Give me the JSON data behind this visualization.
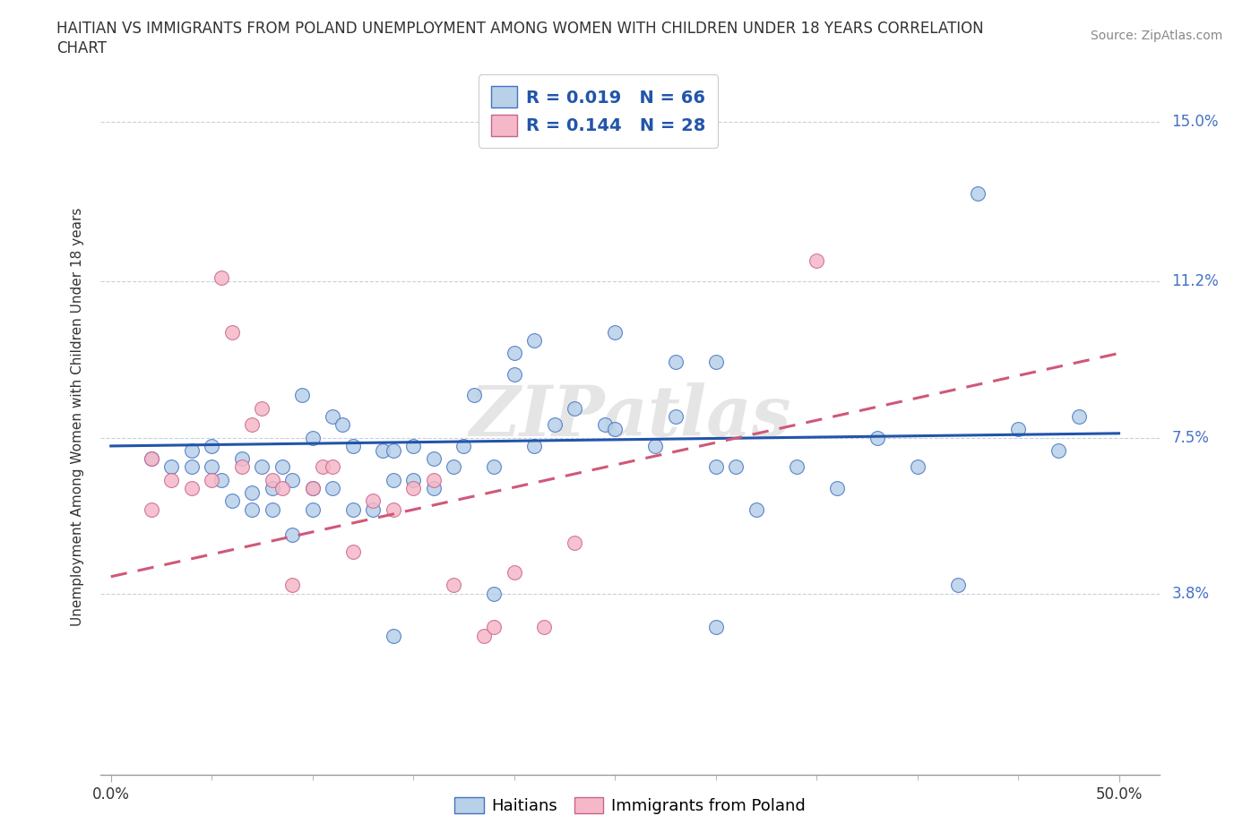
{
  "title_line1": "HAITIAN VS IMMIGRANTS FROM POLAND UNEMPLOYMENT AMONG WOMEN WITH CHILDREN UNDER 18 YEARS CORRELATION",
  "title_line2": "CHART",
  "source_text": "Source: ZipAtlas.com",
  "ylabel": "Unemployment Among Women with Children Under 18 years",
  "ytick_labels": [
    "3.8%",
    "7.5%",
    "11.2%",
    "15.0%"
  ],
  "ytick_values": [
    0.038,
    0.075,
    0.112,
    0.15
  ],
  "xtick_labels": [
    "0.0%",
    "50.0%"
  ],
  "xtick_values": [
    0.0,
    0.5
  ],
  "xlim": [
    -0.005,
    0.52
  ],
  "ylim": [
    -0.005,
    0.165
  ],
  "haitian_fill": "#b8d0e8",
  "haitian_edge": "#4472c4",
  "poland_fill": "#f5b8c8",
  "poland_edge": "#c8648c",
  "haitian_line_color": "#2255aa",
  "poland_line_color": "#d05878",
  "legend_R_haitian": "R = 0.019",
  "legend_N_haitian": "N = 66",
  "legend_R_poland": "R = 0.144",
  "legend_N_poland": "N = 28",
  "legend_text_color": "#2255aa",
  "watermark": "ZIPatlas",
  "grid_color": "#c8d0dc",
  "bg_color": "#ffffff",
  "title_fontsize": 12,
  "axis_label_fontsize": 11,
  "tick_fontsize": 12,
  "right_label_color": "#4472c4",
  "haitian_x": [
    0.02,
    0.03,
    0.04,
    0.04,
    0.05,
    0.05,
    0.055,
    0.06,
    0.065,
    0.07,
    0.07,
    0.075,
    0.08,
    0.08,
    0.085,
    0.09,
    0.09,
    0.095,
    0.1,
    0.1,
    0.1,
    0.11,
    0.11,
    0.115,
    0.12,
    0.12,
    0.13,
    0.135,
    0.14,
    0.14,
    0.15,
    0.15,
    0.16,
    0.16,
    0.17,
    0.175,
    0.18,
    0.19,
    0.2,
    0.21,
    0.22,
    0.23,
    0.245,
    0.25,
    0.27,
    0.28,
    0.3,
    0.31,
    0.32,
    0.34,
    0.36,
    0.38,
    0.4,
    0.42,
    0.43,
    0.45,
    0.47,
    0.48,
    0.25,
    0.3,
    0.21,
    0.2,
    0.28,
    0.19,
    0.14,
    0.3
  ],
  "haitian_y": [
    0.07,
    0.068,
    0.068,
    0.072,
    0.068,
    0.073,
    0.065,
    0.06,
    0.07,
    0.058,
    0.062,
    0.068,
    0.058,
    0.063,
    0.068,
    0.052,
    0.065,
    0.085,
    0.058,
    0.063,
    0.075,
    0.063,
    0.08,
    0.078,
    0.058,
    0.073,
    0.058,
    0.072,
    0.065,
    0.072,
    0.065,
    0.073,
    0.063,
    0.07,
    0.068,
    0.073,
    0.085,
    0.068,
    0.095,
    0.073,
    0.078,
    0.082,
    0.078,
    0.077,
    0.073,
    0.08,
    0.068,
    0.068,
    0.058,
    0.068,
    0.063,
    0.075,
    0.068,
    0.04,
    0.133,
    0.077,
    0.072,
    0.08,
    0.1,
    0.093,
    0.098,
    0.09,
    0.093,
    0.038,
    0.028,
    0.03
  ],
  "poland_x": [
    0.02,
    0.02,
    0.03,
    0.04,
    0.05,
    0.055,
    0.06,
    0.065,
    0.07,
    0.075,
    0.08,
    0.085,
    0.09,
    0.1,
    0.105,
    0.11,
    0.12,
    0.13,
    0.14,
    0.15,
    0.16,
    0.17,
    0.185,
    0.19,
    0.2,
    0.215,
    0.23,
    0.35
  ],
  "poland_y": [
    0.07,
    0.058,
    0.065,
    0.063,
    0.065,
    0.113,
    0.1,
    0.068,
    0.078,
    0.082,
    0.065,
    0.063,
    0.04,
    0.063,
    0.068,
    0.068,
    0.048,
    0.06,
    0.058,
    0.063,
    0.065,
    0.04,
    0.028,
    0.03,
    0.043,
    0.03,
    0.05,
    0.117
  ],
  "haitian_trend_x": [
    0.0,
    0.5
  ],
  "haitian_trend_y": [
    0.073,
    0.076
  ],
  "poland_trend_x": [
    0.0,
    0.5
  ],
  "poland_trend_y": [
    0.042,
    0.095
  ]
}
